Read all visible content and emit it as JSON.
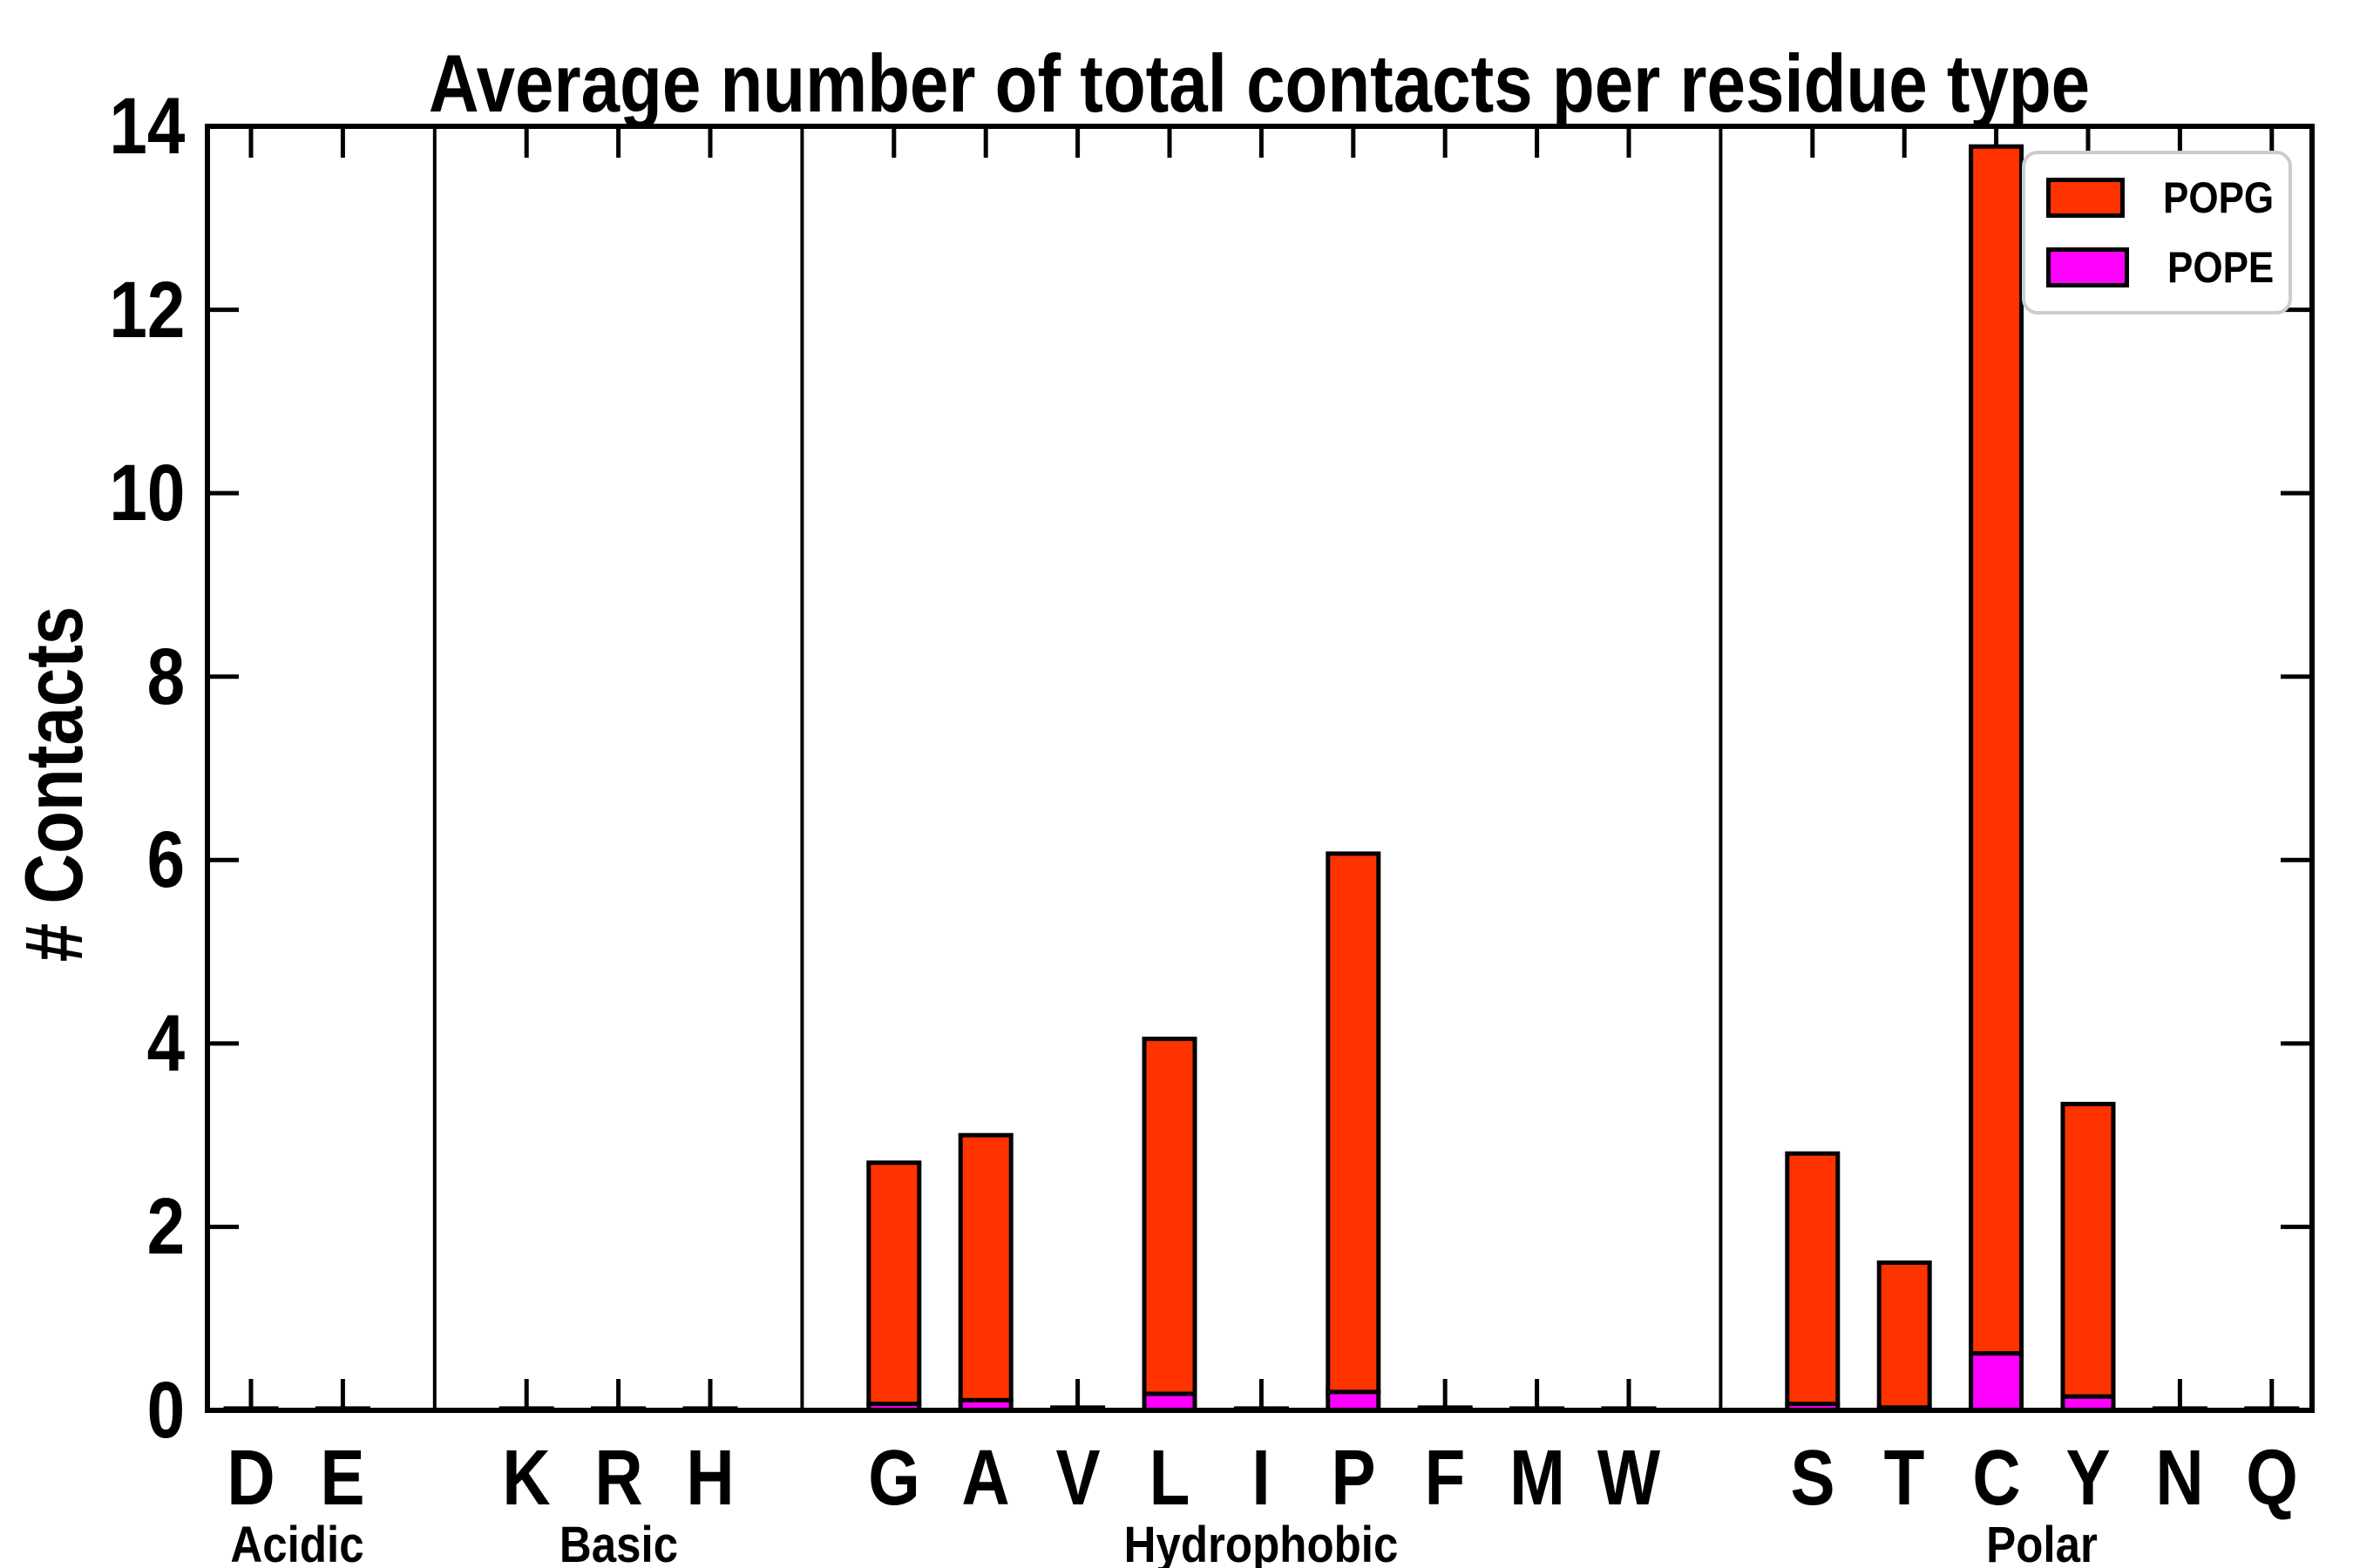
{
  "title": "Average number of total contacts per residue type",
  "ylabel": "# Contacts",
  "legend": {
    "items": [
      {
        "label": "POPG",
        "color": "#FF3300"
      },
      {
        "label": "POPE",
        "color": "#FF00FF"
      }
    ]
  },
  "chart_data": {
    "type": "bar",
    "stacked": true,
    "title": "Average number of total contacts per residue type",
    "xlabel": "",
    "ylabel": "# Contacts",
    "ylim": [
      0,
      14
    ],
    "yticks": [
      0,
      2,
      4,
      6,
      8,
      10,
      12,
      14
    ],
    "grid": false,
    "legend_position": "upper right",
    "categories": [
      "D",
      "E",
      "K",
      "R",
      "H",
      "G",
      "A",
      "V",
      "L",
      "I",
      "P",
      "F",
      "M",
      "W",
      "S",
      "T",
      "C",
      "Y",
      "N",
      "Q"
    ],
    "groups": [
      {
        "label": "Acidic",
        "residues": [
          "D",
          "E"
        ]
      },
      {
        "label": "Basic",
        "residues": [
          "K",
          "R",
          "H"
        ]
      },
      {
        "label": "Hydrophobic",
        "residues": [
          "G",
          "A",
          "V",
          "L",
          "I",
          "P",
          "F",
          "M",
          "W"
        ]
      },
      {
        "label": "Polar",
        "residues": [
          "S",
          "T",
          "C",
          "Y",
          "N",
          "Q"
        ]
      }
    ],
    "series": [
      {
        "name": "POPG",
        "color": "#FF3300",
        "values": [
          0.01,
          0.01,
          0.01,
          0.01,
          0.01,
          2.63,
          2.89,
          0.02,
          3.87,
          0.01,
          5.87,
          0.02,
          0.01,
          0.01,
          2.73,
          1.58,
          13.16,
          3.19,
          0.01,
          0.01
        ]
      },
      {
        "name": "POPE",
        "color": "#FF00FF",
        "values": [
          0.01,
          0.01,
          0.01,
          0.01,
          0.01,
          0.07,
          0.11,
          0.01,
          0.18,
          0.01,
          0.2,
          0.01,
          0.01,
          0.01,
          0.07,
          0.03,
          0.62,
          0.15,
          0.01,
          0.01
        ]
      }
    ],
    "totals": [
      0.02,
      0.02,
      0.02,
      0.02,
      0.02,
      2.7,
      3.0,
      0.03,
      4.05,
      0.02,
      6.07,
      0.03,
      0.02,
      0.02,
      2.8,
      1.61,
      13.78,
      3.34,
      0.02,
      0.02
    ],
    "bar_outline_color": "#000000"
  }
}
